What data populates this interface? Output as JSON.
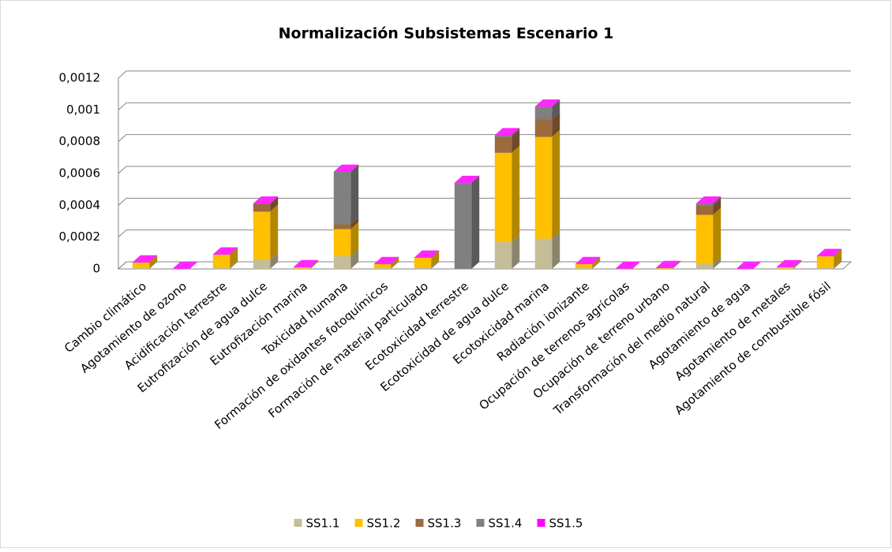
{
  "chart_data": {
    "type": "bar3d-stacked",
    "title": "Normalización Subsistemas Escenario 1",
    "categories": [
      "Cambio climático",
      "Agotamiento de ozono",
      "Acidificación terrestre",
      "Eutrofización de agua dulce",
      "Eutrofización marina",
      "Toxicidad humana",
      "Formación de oxidantes fotoquímicos",
      "Formación de material particulado",
      "Ecotoxicidad terrestre",
      "Ecotoxicidad de agua dulce",
      "Ecotoxicidad marina",
      "Radiación ionizante",
      "Ocupación de terrenos agrícolas",
      "Ocupación de terreno urbano",
      "Transformación del medio natural",
      "Agotamiento de agua",
      "Agotamiento de metales",
      "Agotamiento de combustible fósil"
    ],
    "series": [
      {
        "name": "SS1.1",
        "color": "#c4bd97",
        "values": [
          5e-06,
          0,
          1e-05,
          6e-05,
          3e-06,
          8e-05,
          5e-06,
          1e-05,
          0,
          0.00017,
          0.00019,
          5e-06,
          0,
          2e-06,
          3e-05,
          0,
          3e-06,
          1e-05
        ]
      },
      {
        "name": "SS1.2",
        "color": "#ffc000",
        "values": [
          3.5e-05,
          0,
          8e-05,
          0.0003,
          7e-06,
          0.00017,
          2.5e-05,
          6e-05,
          0,
          0.00056,
          0.00064,
          2.5e-05,
          1e-06,
          3e-06,
          0.00031,
          0,
          7e-06,
          7e-05
        ]
      },
      {
        "name": "SS1.3",
        "color": "#9c6a3c",
        "values": [
          0,
          0,
          0,
          5e-05,
          0,
          3e-05,
          0,
          0,
          0,
          0.0001,
          0.00011,
          0,
          0,
          0,
          6e-05,
          0,
          0,
          0
        ]
      },
      {
        "name": "SS1.4",
        "color": "#808080",
        "values": [
          0,
          0,
          0,
          0,
          0,
          0.00033,
          0,
          0,
          0.00054,
          1e-05,
          8e-05,
          0,
          0,
          0,
          1e-05,
          0,
          0,
          0
        ]
      },
      {
        "name": "SS1.5",
        "color": "#ff00ff",
        "values": [
          1e-06,
          1e-06,
          1e-06,
          1e-06,
          1e-06,
          1e-06,
          1e-06,
          1e-06,
          1e-06,
          1e-06,
          1e-06,
          1e-06,
          1e-06,
          1e-06,
          1e-06,
          1e-06,
          1e-06,
          1e-06
        ]
      }
    ],
    "ylim": [
      0,
      0.0012
    ],
    "yticks": [
      0,
      {
        "value": 0.0002,
        "label": "0,0002"
      },
      {
        "value": 0.0004,
        "label": "0,0004"
      },
      {
        "value": 0.0006,
        "label": "0,0006"
      },
      {
        "value": 0.0008,
        "label": "0,0008"
      },
      {
        "value": 0.001,
        "label": "0,001"
      },
      {
        "value": 0.0012,
        "label": "0,0012"
      }
    ],
    "grid": true,
    "legend": "bottom"
  }
}
